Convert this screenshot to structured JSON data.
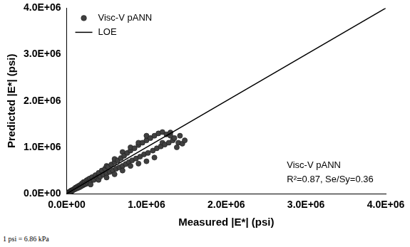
{
  "chart_data": {
    "type": "scatter",
    "x_label": "Measured |E*| (psi)",
    "y_label": "Predicted |E*| (psi)",
    "series": [
      {
        "name": "Visc-V pANN",
        "color": "#404040",
        "marker": "circle",
        "x": [
          5000,
          10000,
          15000,
          20000,
          25000,
          30000,
          35000,
          40000,
          45000,
          50000,
          55000,
          60000,
          65000,
          70000,
          80000,
          90000,
          100000,
          110000,
          120000,
          130000,
          140000,
          150000,
          160000,
          170000,
          180000,
          190000,
          200000,
          210000,
          220000,
          230000,
          240000,
          250000,
          260000,
          270000,
          280000,
          290000,
          300000,
          300000,
          320000,
          340000,
          360000,
          380000,
          400000,
          400000,
          420000,
          440000,
          460000,
          480000,
          500000,
          500000,
          500000,
          520000,
          540000,
          560000,
          580000,
          600000,
          600000,
          600000,
          620000,
          640000,
          660000,
          680000,
          700000,
          700000,
          700000,
          720000,
          740000,
          760000,
          780000,
          800000,
          800000,
          800000,
          820000,
          850000,
          870000,
          900000,
          900000,
          900000,
          920000,
          950000,
          970000,
          1000000,
          1000000,
          1000000,
          1020000,
          1050000,
          1080000,
          1100000,
          1100000,
          1130000,
          1150000,
          1180000,
          1200000,
          1200000,
          1230000,
          1250000,
          1280000,
          1300000,
          1300000,
          1330000,
          1350000,
          1380000,
          1400000,
          1420000,
          1450000,
          1480000
        ],
        "values": [
          8000,
          12000,
          10000,
          25000,
          35000,
          28000,
          20000,
          45000,
          40000,
          55000,
          70000,
          52000,
          60000,
          80000,
          75000,
          100000,
          95000,
          130000,
          110000,
          150000,
          125000,
          170000,
          140000,
          190000,
          160000,
          220000,
          180000,
          250000,
          200000,
          260000,
          210000,
          290000,
          230000,
          310000,
          250000,
          330000,
          270000,
          200000,
          360000,
          300000,
          400000,
          340000,
          450000,
          300000,
          370000,
          500000,
          410000,
          540000,
          440000,
          350000,
          600000,
          580000,
          470000,
          630000,
          500000,
          680000,
          420000,
          750000,
          540000,
          720000,
          570000,
          770000,
          600000,
          500000,
          900000,
          820000,
          640000,
          880000,
          680000,
          930000,
          600000,
          1000000,
          720000,
          980000,
          760000,
          1050000,
          650000,
          1100000,
          800000,
          1100000,
          850000,
          1150000,
          700000,
          1250000,
          880000,
          1200000,
          930000,
          1250000,
          780000,
          980000,
          1300000,
          1020000,
          1330000,
          1100000,
          1060000,
          1280000,
          1100000,
          1250000,
          1320000,
          1150000,
          1200000,
          1000000,
          1100000,
          1250000,
          1080000,
          1150000
        ]
      },
      {
        "name": "LOE",
        "color": "#000000",
        "type": "line",
        "marker": "none",
        "line_style": "solid",
        "x": [
          0,
          4000000
        ],
        "values": [
          0,
          4000000
        ]
      }
    ],
    "xlim": [
      0,
      4000000
    ],
    "ylim": [
      0,
      4000000
    ],
    "xticks": [
      {
        "value": 0,
        "label": "0.0E+00"
      },
      {
        "value": 1000000,
        "label": "1.0E+06"
      },
      {
        "value": 2000000,
        "label": "2.0E+06"
      },
      {
        "value": 3000000,
        "label": "3.0E+06"
      },
      {
        "value": 4000000,
        "label": "4.0E+06"
      }
    ],
    "yticks": [
      {
        "value": 0,
        "label": "0.0E+00"
      },
      {
        "value": 1000000,
        "label": "1.0E+06"
      },
      {
        "value": 2000000,
        "label": "2.0E+06"
      },
      {
        "value": 3000000,
        "label": "3.0E+06"
      },
      {
        "value": 4000000,
        "label": "4.0E+06"
      }
    ],
    "grid": false,
    "legend": "top-left",
    "annotations": [
      "Visc-V pANN",
      "R²=0.87, Se/Sy=0.36"
    ],
    "footnote": "1 psi = 6.86 kPa"
  }
}
